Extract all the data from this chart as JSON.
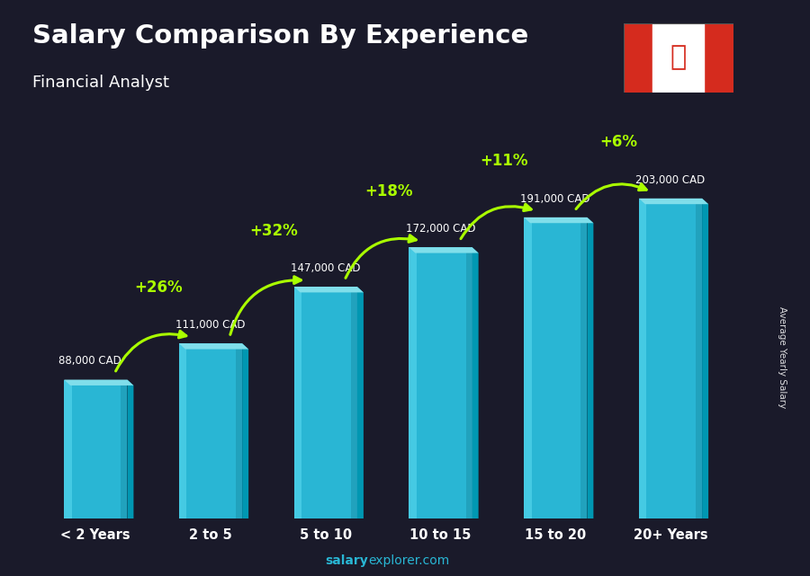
{
  "title": "Salary Comparison By Experience",
  "subtitle": "Financial Analyst",
  "categories": [
    "< 2 Years",
    "2 to 5",
    "5 to 10",
    "10 to 15",
    "15 to 20",
    "20+ Years"
  ],
  "values": [
    88000,
    111000,
    147000,
    172000,
    191000,
    203000
  ],
  "labels": [
    "88,000 CAD",
    "111,000 CAD",
    "147,000 CAD",
    "172,000 CAD",
    "191,000 CAD",
    "203,000 CAD"
  ],
  "pct_changes": [
    "+26%",
    "+32%",
    "+18%",
    "+11%",
    "+6%"
  ],
  "bar_color_front": "#29b6d4",
  "bar_color_light": "#4dd0e8",
  "bar_color_dark": "#0097b2",
  "bar_color_top": "#80deea",
  "title_color": "#ffffff",
  "subtitle_color": "#ffffff",
  "label_color": "#ffffff",
  "pct_color": "#aaff00",
  "footer_salary_bold": "salary",
  "footer_rest": "explorer.com",
  "ylabel": "Average Yearly Salary",
  "bg_color": "#1a1a2a"
}
